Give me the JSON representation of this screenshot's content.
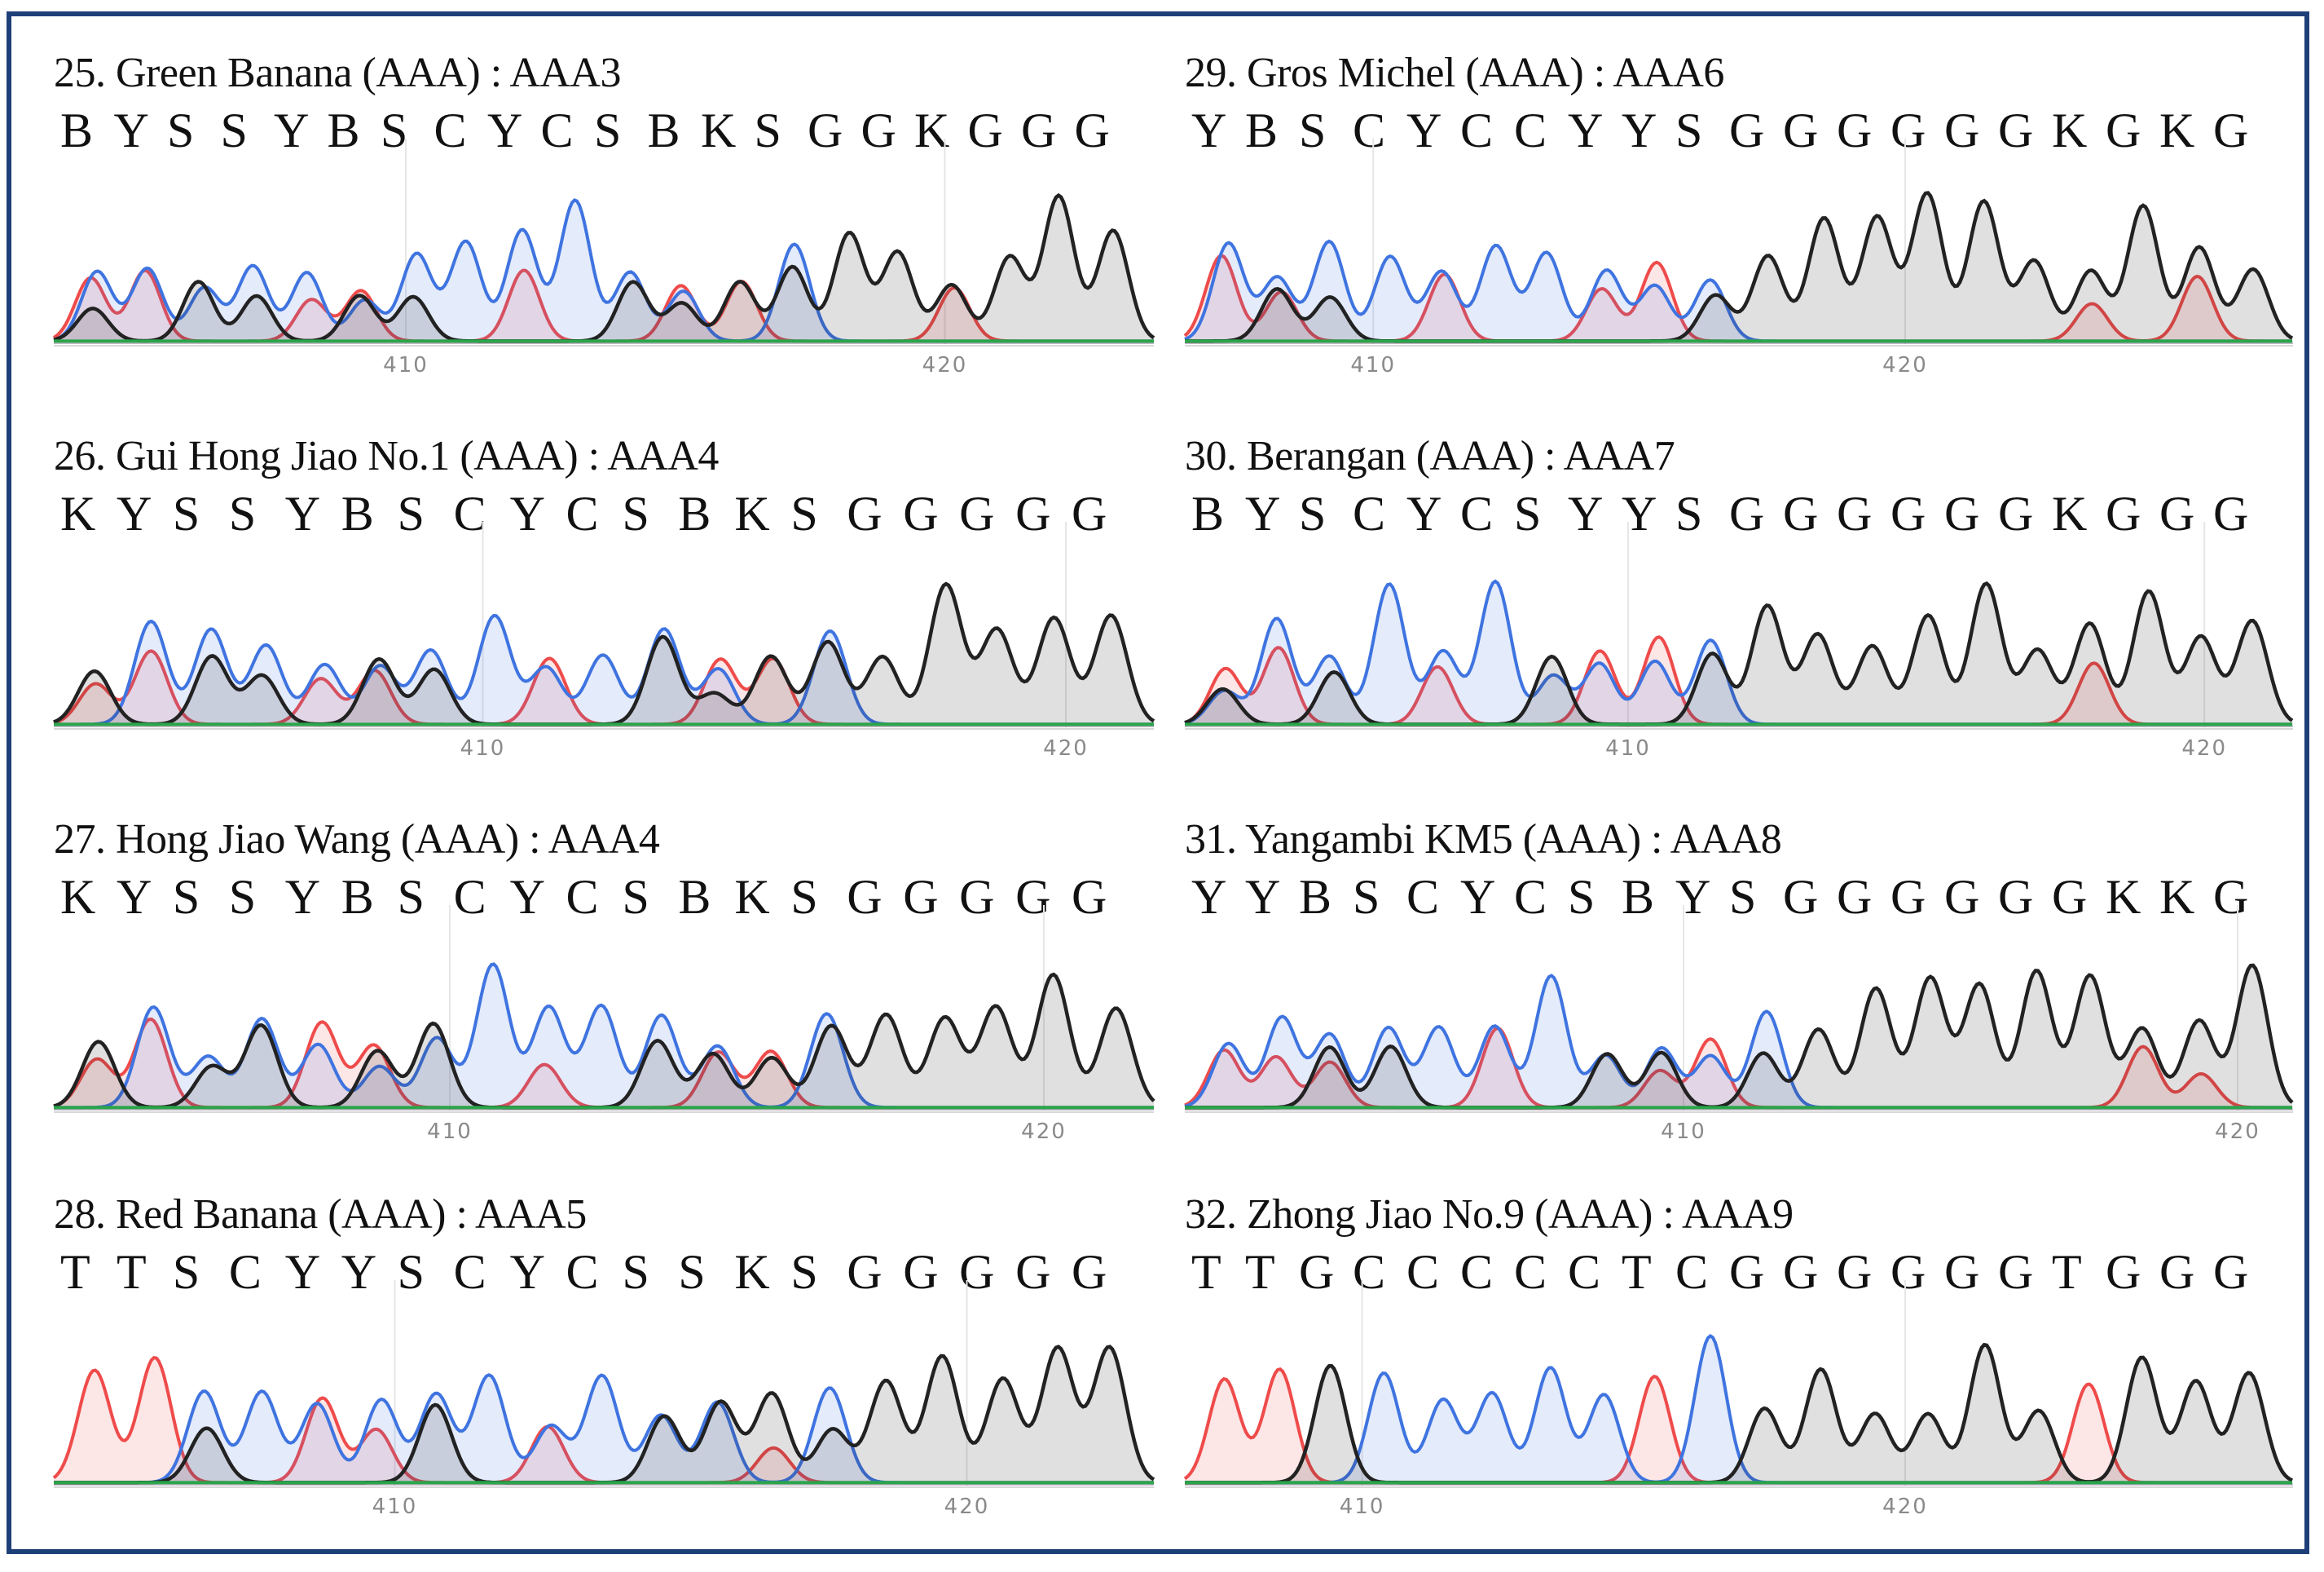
{
  "colors": {
    "border": "#1f3f78",
    "A": "#2aa54a",
    "C": "#3f74e0",
    "G": "#222222",
    "T": "#ef4b4b"
  },
  "panels": [
    {
      "title": "25. Green Banana (AAA) : AAA3",
      "sequence": [
        "B",
        "Y",
        "S",
        "S",
        "Y",
        "B",
        "S",
        "C",
        "Y",
        "C",
        "S",
        "B",
        "K",
        "S",
        "G",
        "G",
        "K",
        "G",
        "G",
        "G"
      ],
      "ticks": [
        "410",
        "420"
      ]
    },
    {
      "title": "26. Gui Hong Jiao No.1  (AAA) : AAA4",
      "sequence": [
        "K",
        "Y",
        "S",
        "S",
        "Y",
        "B",
        "S",
        "C",
        "Y",
        "C",
        "S",
        "B",
        "K",
        "S",
        "G",
        "G",
        "G",
        "G",
        "G"
      ],
      "ticks": [
        "410",
        "420"
      ]
    },
    {
      "title": "27. Hong Jiao Wang (AAA) : AAA4",
      "sequence": [
        "K",
        "Y",
        "S",
        "S",
        "Y",
        "B",
        "S",
        "C",
        "Y",
        "C",
        "S",
        "B",
        "K",
        "S",
        "G",
        "G",
        "G",
        "G",
        "G"
      ],
      "ticks": [
        "410",
        "420"
      ]
    },
    {
      "title": "28. Red Banana (AAA) : AAA5",
      "sequence": [
        "T",
        "T",
        "S",
        "C",
        "Y",
        "Y",
        "S",
        "C",
        "Y",
        "C",
        "S",
        "S",
        "K",
        "S",
        "G",
        "G",
        "G",
        "G",
        "G"
      ],
      "ticks": [
        "410",
        "420"
      ]
    },
    {
      "title": "29. Gros Michel (AAA) : AAA6",
      "sequence": [
        "Y",
        "B",
        "S",
        "C",
        "Y",
        "C",
        "C",
        "Y",
        "Y",
        "S",
        "G",
        "G",
        "G",
        "G",
        "G",
        "G",
        "K",
        "G",
        "K",
        "G"
      ],
      "ticks": [
        "410",
        "420"
      ]
    },
    {
      "title": "30. Berangan (AAA) : AAA7",
      "sequence": [
        "B",
        "Y",
        "S",
        "C",
        "Y",
        "C",
        "S",
        "Y",
        "Y",
        "S",
        "G",
        "G",
        "G",
        "G",
        "G",
        "G",
        "K",
        "G",
        "G",
        "G"
      ],
      "ticks": [
        "410",
        "420"
      ]
    },
    {
      "title": "31. Yangambi KM5 (AAA) : AAA8",
      "sequence": [
        "Y",
        "Y",
        "B",
        "S",
        "C",
        "Y",
        "C",
        "S",
        "B",
        "Y",
        "S",
        "G",
        "G",
        "G",
        "G",
        "G",
        "G",
        "K",
        "K",
        "G"
      ],
      "ticks": [
        "410",
        "420"
      ]
    },
    {
      "title": "32. Zhong Jiao No.9 (AAA) : AAA9",
      "sequence": [
        "T",
        "T",
        "G",
        "C",
        "C",
        "C",
        "C",
        "C",
        "T",
        "C",
        "G",
        "G",
        "G",
        "G",
        "G",
        "G",
        "T",
        "G",
        "G",
        "G"
      ],
      "ticks": [
        "410",
        "420"
      ]
    }
  ]
}
